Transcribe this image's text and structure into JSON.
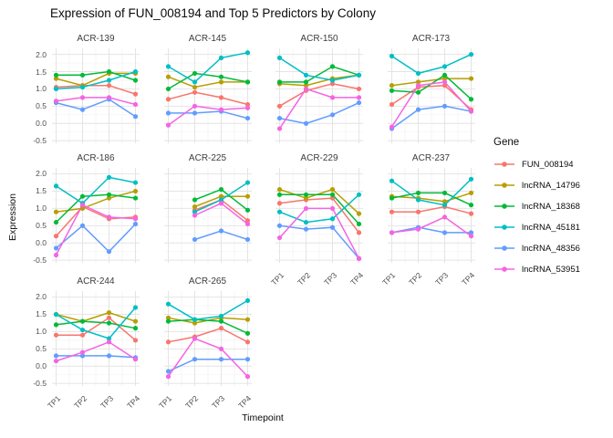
{
  "title": "Expression of FUN_008194 and Top 5 Predictors by Colony",
  "axes": {
    "x_title": "Timepoint",
    "y_title": "Expression",
    "x_ticks": [
      "TP1",
      "TP2",
      "TP3",
      "TP4"
    ],
    "y_ticks": [
      "2.0",
      "1.5",
      "1.0",
      "0.5",
      "0.0",
      "-0.5"
    ],
    "y_tick_values": [
      2.0,
      1.5,
      1.0,
      0.5,
      0.0,
      -0.5
    ]
  },
  "legend": {
    "title": "Gene",
    "entries": [
      {
        "label": "FUN_008194",
        "color": "#F8766D"
      },
      {
        "label": "lncRNA_14796",
        "color": "#B79F00"
      },
      {
        "label": "lncRNA_18368",
        "color": "#00BA38"
      },
      {
        "label": "lncRNA_45181",
        "color": "#00BFC4"
      },
      {
        "label": "lncRNA_48356",
        "color": "#619CFF"
      },
      {
        "label": "lncRNA_53951",
        "color": "#F564E3"
      }
    ]
  },
  "chart_data": {
    "type": "line",
    "facet_by": "Colony",
    "x_categories": [
      "TP1",
      "TP2",
      "TP3",
      "TP4"
    ],
    "ylim": [
      -0.5,
      2.0
    ],
    "grid": "major+minor",
    "legend_position": "right",
    "facets": [
      {
        "name": "ACR-139",
        "series": [
          {
            "name": "FUN_008194",
            "values": [
              1.05,
              1.1,
              1.1,
              0.85
            ]
          },
          {
            "name": "lncRNA_14796",
            "values": [
              1.3,
              1.1,
              1.45,
              1.45
            ]
          },
          {
            "name": "lncRNA_18368",
            "values": [
              1.4,
              1.4,
              1.5,
              1.25
            ]
          },
          {
            "name": "lncRNA_45181",
            "values": [
              1.0,
              1.05,
              1.25,
              1.5
            ]
          },
          {
            "name": "lncRNA_48356",
            "values": [
              0.6,
              0.4,
              0.7,
              0.2
            ]
          },
          {
            "name": "lncRNA_53951",
            "values": [
              0.65,
              0.75,
              0.75,
              0.55
            ]
          }
        ]
      },
      {
        "name": "ACR-145",
        "series": [
          {
            "name": "FUN_008194",
            "values": [
              0.7,
              0.9,
              0.75,
              0.55
            ]
          },
          {
            "name": "lncRNA_14796",
            "values": [
              1.35,
              1.05,
              1.2,
              1.2
            ]
          },
          {
            "name": "lncRNA_18368",
            "values": [
              1.0,
              1.45,
              1.35,
              1.2
            ]
          },
          {
            "name": "lncRNA_45181",
            "values": [
              1.65,
              1.2,
              1.9,
              2.05
            ]
          },
          {
            "name": "lncRNA_48356",
            "values": [
              0.3,
              0.3,
              0.35,
              0.15
            ]
          },
          {
            "name": "lncRNA_53951",
            "values": [
              -0.05,
              0.5,
              0.4,
              0.45
            ]
          }
        ]
      },
      {
        "name": "ACR-150",
        "series": [
          {
            "name": "FUN_008194",
            "values": [
              0.5,
              0.95,
              1.15,
              1.0
            ]
          },
          {
            "name": "lncRNA_14796",
            "values": [
              1.15,
              1.1,
              1.3,
              1.4
            ]
          },
          {
            "name": "lncRNA_18368",
            "values": [
              1.2,
              1.2,
              1.65,
              1.4
            ]
          },
          {
            "name": "lncRNA_45181",
            "values": [
              1.9,
              1.4,
              1.25,
              1.4
            ]
          },
          {
            "name": "lncRNA_48356",
            "values": [
              0.15,
              0.0,
              0.25,
              0.6
            ]
          },
          {
            "name": "lncRNA_53951",
            "values": [
              -0.15,
              1.0,
              0.75,
              0.75
            ]
          }
        ]
      },
      {
        "name": "ACR-173",
        "series": [
          {
            "name": "FUN_008194",
            "values": [
              0.55,
              1.05,
              1.1,
              0.4
            ]
          },
          {
            "name": "lncRNA_14796",
            "values": [
              1.1,
              1.2,
              1.3,
              1.3
            ]
          },
          {
            "name": "lncRNA_18368",
            "values": [
              0.95,
              0.9,
              1.4,
              0.7
            ]
          },
          {
            "name": "lncRNA_45181",
            "values": [
              1.95,
              1.45,
              1.65,
              2.0
            ]
          },
          {
            "name": "lncRNA_48356",
            "values": [
              -0.15,
              0.4,
              0.5,
              0.35
            ]
          },
          {
            "name": "lncRNA_53951",
            "values": [
              -0.1,
              1.1,
              1.2,
              0.35
            ]
          }
        ]
      },
      {
        "name": "ACR-186",
        "series": [
          {
            "name": "FUN_008194",
            "values": [
              0.2,
              1.05,
              0.7,
              0.75
            ]
          },
          {
            "name": "lncRNA_14796",
            "values": [
              0.9,
              1.0,
              1.3,
              1.5
            ]
          },
          {
            "name": "lncRNA_18368",
            "values": [
              0.6,
              1.35,
              1.4,
              1.3
            ]
          },
          {
            "name": "lncRNA_45181",
            "values": [
              1.65,
              1.15,
              1.9,
              1.75
            ]
          },
          {
            "name": "lncRNA_48356",
            "values": [
              -0.15,
              0.5,
              -0.25,
              0.55
            ]
          },
          {
            "name": "lncRNA_53951",
            "values": [
              -0.35,
              1.1,
              0.75,
              0.7
            ]
          }
        ]
      },
      {
        "name": "ACR-225",
        "series": [
          {
            "name": "FUN_008194",
            "values": [
              null,
              0.95,
              1.25,
              0.65
            ]
          },
          {
            "name": "lncRNA_14796",
            "values": [
              null,
              1.05,
              1.35,
              1.35
            ]
          },
          {
            "name": "lncRNA_18368",
            "values": [
              null,
              1.25,
              1.55,
              0.95
            ]
          },
          {
            "name": "lncRNA_45181",
            "values": [
              null,
              0.9,
              1.25,
              1.75
            ]
          },
          {
            "name": "lncRNA_48356",
            "values": [
              null,
              0.1,
              0.35,
              0.1
            ]
          },
          {
            "name": "lncRNA_53951",
            "values": [
              null,
              0.8,
              1.15,
              0.55
            ]
          }
        ]
      },
      {
        "name": "ACR-229",
        "series": [
          {
            "name": "FUN_008194",
            "values": [
              1.15,
              1.25,
              1.3,
              0.3
            ]
          },
          {
            "name": "lncRNA_14796",
            "values": [
              1.55,
              1.3,
              1.55,
              0.85
            ]
          },
          {
            "name": "lncRNA_18368",
            "values": [
              1.4,
              1.4,
              1.4,
              0.55
            ]
          },
          {
            "name": "lncRNA_45181",
            "values": [
              0.9,
              0.6,
              0.7,
              1.4
            ]
          },
          {
            "name": "lncRNA_48356",
            "values": [
              0.5,
              0.4,
              0.45,
              -0.45
            ]
          },
          {
            "name": "lncRNA_53951",
            "values": [
              0.15,
              1.0,
              1.0,
              -0.45
            ]
          }
        ]
      },
      {
        "name": "ACR-237",
        "series": [
          {
            "name": "FUN_008194",
            "values": [
              0.9,
              0.9,
              1.05,
              0.85
            ]
          },
          {
            "name": "lncRNA_14796",
            "values": [
              1.35,
              1.3,
              1.2,
              1.45
            ]
          },
          {
            "name": "lncRNA_18368",
            "values": [
              1.3,
              1.45,
              1.45,
              1.1
            ]
          },
          {
            "name": "lncRNA_45181",
            "values": [
              1.8,
              1.25,
              1.1,
              1.85
            ]
          },
          {
            "name": "lncRNA_48356",
            "values": [
              0.3,
              0.45,
              0.3,
              0.3
            ]
          },
          {
            "name": "lncRNA_53951",
            "values": [
              0.3,
              0.4,
              0.75,
              0.2
            ]
          }
        ]
      },
      {
        "name": "ACR-244",
        "series": [
          {
            "name": "FUN_008194",
            "values": [
              0.9,
              0.9,
              1.4,
              0.75
            ]
          },
          {
            "name": "lncRNA_14796",
            "values": [
              1.5,
              1.3,
              1.55,
              1.3
            ]
          },
          {
            "name": "lncRNA_18368",
            "values": [
              1.2,
              1.3,
              1.25,
              1.1
            ]
          },
          {
            "name": "lncRNA_45181",
            "values": [
              1.5,
              1.05,
              0.8,
              1.7
            ]
          },
          {
            "name": "lncRNA_48356",
            "values": [
              0.3,
              0.3,
              0.3,
              0.25
            ]
          },
          {
            "name": "lncRNA_53951",
            "values": [
              0.15,
              0.4,
              0.7,
              0.2
            ]
          }
        ]
      },
      {
        "name": "ACR-265",
        "series": [
          {
            "name": "FUN_008194",
            "values": [
              0.7,
              0.85,
              1.1,
              0.7
            ]
          },
          {
            "name": "lncRNA_14796",
            "values": [
              1.4,
              1.25,
              1.4,
              1.35
            ]
          },
          {
            "name": "lncRNA_18368",
            "values": [
              1.3,
              1.35,
              1.3,
              0.95
            ]
          },
          {
            "name": "lncRNA_45181",
            "values": [
              1.8,
              1.35,
              1.45,
              1.9
            ]
          },
          {
            "name": "lncRNA_48356",
            "values": [
              -0.15,
              0.2,
              0.2,
              0.2
            ]
          },
          {
            "name": "lncRNA_53951",
            "values": [
              -0.3,
              0.8,
              0.5,
              -0.3
            ]
          }
        ]
      }
    ]
  }
}
